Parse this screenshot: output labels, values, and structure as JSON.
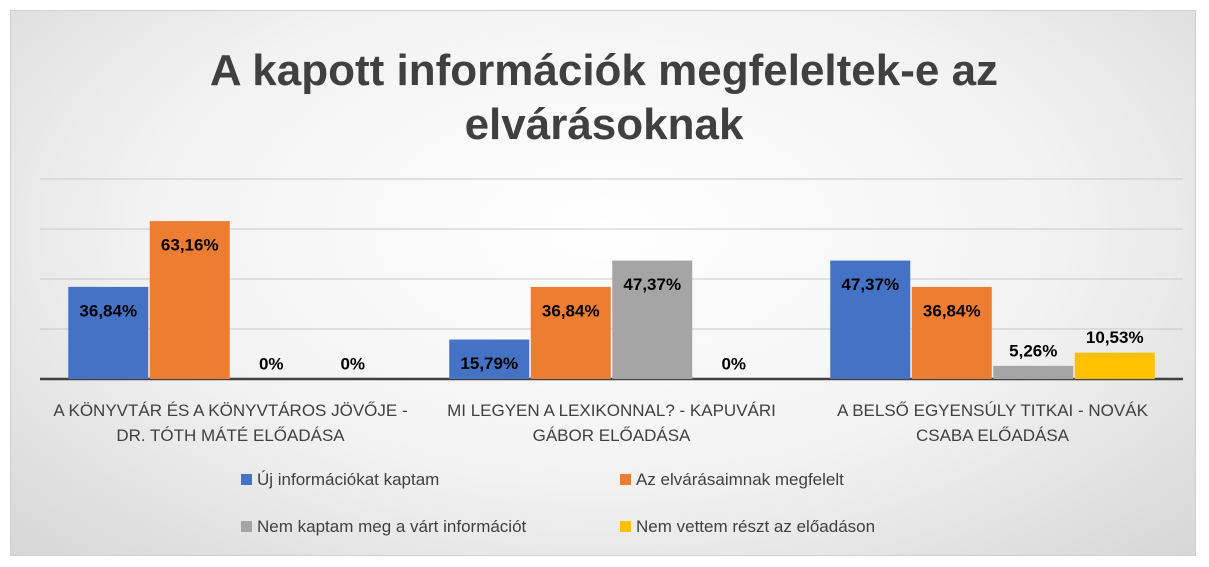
{
  "chart_data": {
    "type": "bar",
    "title": "A kapott információk megfeleltek-e az elvárásoknak",
    "categories": [
      "A KÖNYVTÁR ÉS A KÖNYVTÁROS JÖVŐJE - DR. TÓTH MÁTÉ ELŐADÁSA",
      "MI LEGYEN A LEXIKONNAL? - KAPUVÁRI GÁBOR ELŐADÁSA",
      "A BELSŐ EGYENSÚLY TITKAI - NOVÁK CSABA ELŐADÁSA"
    ],
    "series": [
      {
        "name": "Új információkat kaptam",
        "color": "#4472c4",
        "values": [
          36.84,
          15.79,
          47.37
        ],
        "value_labels": [
          "36,84%",
          "15,79%",
          "47,37%"
        ]
      },
      {
        "name": "Az elvárásaimnak megfelelt",
        "color": "#ed7d31",
        "values": [
          63.16,
          36.84,
          36.84
        ],
        "value_labels": [
          "63,16%",
          "36,84%",
          "36,84%"
        ]
      },
      {
        "name": "Nem kaptam meg a várt információt",
        "color": "#a5a5a5",
        "values": [
          0,
          47.37,
          5.26
        ],
        "value_labels": [
          "0%",
          "47,37%",
          "5,26%"
        ]
      },
      {
        "name": "Nem vettem részt az előadáson",
        "color": "#ffc000",
        "values": [
          0,
          0,
          10.53
        ],
        "value_labels": [
          "0%",
          "0%",
          "10,53%"
        ]
      }
    ],
    "ylim": [
      0,
      80
    ],
    "yticks": [
      0,
      20,
      40,
      60,
      80
    ],
    "grid": true,
    "legend": "bottom"
  }
}
